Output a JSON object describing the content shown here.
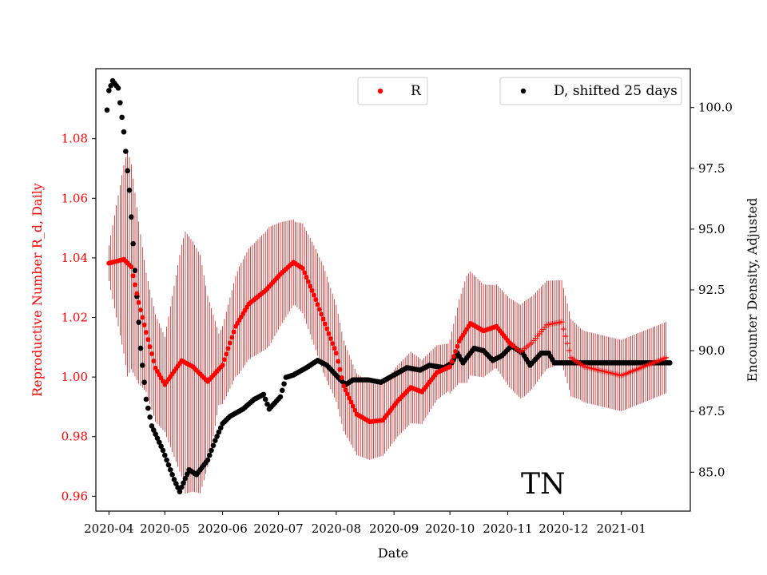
{
  "chart_data": {
    "type": "scatter",
    "xlabel": "Date",
    "ylabel_left": "Reproductive Number R_d, Daily",
    "ylabel_right": "Encounter Density, Adjusted",
    "annotation": "TN",
    "x_ticks": [
      "2020-04",
      "2020-05",
      "2020-06",
      "2020-07",
      "2020-08",
      "2020-09",
      "2020-10",
      "2020-11",
      "2020-12",
      "2021-01"
    ],
    "y_left_ticks": [
      "0.96",
      "0.98",
      "1.00",
      "1.02",
      "1.04",
      "1.06",
      "1.08"
    ],
    "y_right_ticks": [
      "85.0",
      "87.5",
      "90.0",
      "92.5",
      "95.0",
      "97.5",
      "100.0"
    ],
    "xlim": [
      "2020-03-25",
      "2021-02-07"
    ],
    "ylim_left": [
      0.955,
      1.1035
    ],
    "ylim_right": [
      83.4,
      101.6
    ],
    "colors": {
      "R": "#ff0000",
      "D": "#000000",
      "errorbar": "#c00000",
      "left_axis_text": "#ff0000"
    },
    "legend_R": {
      "label": "R",
      "placement": "top-center"
    },
    "legend_D": {
      "label": "D, shifted 25 days",
      "placement": "top-right"
    },
    "series_R_knots": [
      [
        "2020-04-01",
        1.0382
      ],
      [
        "2020-04-09",
        1.0395
      ],
      [
        "2020-04-13",
        1.037
      ],
      [
        "2020-04-17",
        1.025
      ],
      [
        "2020-04-21",
        1.015
      ],
      [
        "2020-04-26",
        1.003
      ],
      [
        "2020-05-01",
        0.9975
      ],
      [
        "2020-05-05",
        1.001
      ],
      [
        "2020-05-10",
        1.0055
      ],
      [
        "2020-05-16",
        1.0035
      ],
      [
        "2020-05-24",
        0.9985
      ],
      [
        "2020-06-01",
        1.004
      ],
      [
        "2020-06-08",
        1.017
      ],
      [
        "2020-06-15",
        1.0245
      ],
      [
        "2020-06-24",
        1.029
      ],
      [
        "2020-07-02",
        1.0345
      ],
      [
        "2020-07-09",
        1.0385
      ],
      [
        "2020-07-14",
        1.0365
      ],
      [
        "2020-07-21",
        1.026
      ],
      [
        "2020-08-01",
        1.008
      ],
      [
        "2020-08-05",
        0.997
      ],
      [
        "2020-08-12",
        0.9875
      ],
      [
        "2020-08-19",
        0.985
      ],
      [
        "2020-08-26",
        0.9855
      ],
      [
        "2020-09-03",
        0.992
      ],
      [
        "2020-09-10",
        0.9965
      ],
      [
        "2020-09-16",
        0.995
      ],
      [
        "2020-09-24",
        1.0015
      ],
      [
        "2020-10-01",
        1.0035
      ],
      [
        "2020-10-06",
        1.012
      ],
      [
        "2020-10-12",
        1.018
      ],
      [
        "2020-10-19",
        1.0155
      ],
      [
        "2020-10-26",
        1.017
      ],
      [
        "2020-11-02",
        1.0115
      ],
      [
        "2020-11-08",
        1.0085
      ],
      [
        "2020-11-14",
        1.0115
      ],
      [
        "2020-11-22",
        1.0175
      ],
      [
        "2020-11-30",
        1.0185
      ],
      [
        "2020-12-05",
        1.0065
      ],
      [
        "2020-12-12",
        1.0035
      ],
      [
        "2021-01-01",
        1.0005
      ],
      [
        "2021-01-25",
        1.0065
      ]
    ],
    "series_D_knots": [
      [
        "2020-03-31",
        99.9
      ],
      [
        "2020-04-01",
        100.7
      ],
      [
        "2020-04-03",
        101.1
      ],
      [
        "2020-04-06",
        100.8
      ],
      [
        "2020-04-09",
        99.0
      ],
      [
        "2020-04-12",
        96.6
      ],
      [
        "2020-04-15",
        93.3
      ],
      [
        "2020-04-18",
        90.1
      ],
      [
        "2020-04-21",
        88.0
      ],
      [
        "2020-04-24",
        86.9
      ],
      [
        "2020-04-30",
        85.9
      ],
      [
        "2020-05-06",
        84.7
      ],
      [
        "2020-05-09",
        84.2
      ],
      [
        "2020-05-14",
        85.1
      ],
      [
        "2020-05-18",
        84.9
      ],
      [
        "2020-05-24",
        85.5
      ],
      [
        "2020-05-28",
        86.3
      ],
      [
        "2020-06-01",
        87.0
      ],
      [
        "2020-06-05",
        87.3
      ],
      [
        "2020-06-12",
        87.6
      ],
      [
        "2020-06-18",
        88.0
      ],
      [
        "2020-06-23",
        88.2
      ],
      [
        "2020-06-26",
        87.6
      ],
      [
        "2020-07-02",
        88.1
      ],
      [
        "2020-07-05",
        88.9
      ],
      [
        "2020-07-09",
        89.0
      ],
      [
        "2020-07-16",
        89.3
      ],
      [
        "2020-07-22",
        89.6
      ],
      [
        "2020-07-27",
        89.4
      ],
      [
        "2020-08-02",
        88.9
      ],
      [
        "2020-08-06",
        88.6
      ],
      [
        "2020-08-10",
        88.8
      ],
      [
        "2020-08-18",
        88.8
      ],
      [
        "2020-08-25",
        88.7
      ],
      [
        "2020-09-01",
        89.0
      ],
      [
        "2020-09-08",
        89.3
      ],
      [
        "2020-09-15",
        89.2
      ],
      [
        "2020-09-20",
        89.4
      ],
      [
        "2020-09-28",
        89.3
      ],
      [
        "2020-10-02",
        89.5
      ],
      [
        "2020-10-05",
        89.9
      ],
      [
        "2020-10-08",
        89.5
      ],
      [
        "2020-10-14",
        90.1
      ],
      [
        "2020-10-19",
        90.0
      ],
      [
        "2020-10-24",
        89.6
      ],
      [
        "2020-10-29",
        89.8
      ],
      [
        "2020-11-03",
        90.2
      ],
      [
        "2020-11-09",
        89.9
      ],
      [
        "2020-11-13",
        89.4
      ],
      [
        "2020-11-19",
        89.9
      ],
      [
        "2020-11-23",
        89.9
      ],
      [
        "2020-11-26",
        89.5
      ],
      [
        "2021-01-27",
        89.5
      ]
    ],
    "errorbar_halfwidth_knots": [
      [
        "2020-04-01",
        0.006
      ],
      [
        "2020-04-11",
        0.038
      ],
      [
        "2020-04-21",
        0.02
      ],
      [
        "2020-05-01",
        0.016
      ],
      [
        "2020-05-12",
        0.044
      ],
      [
        "2020-05-20",
        0.04
      ],
      [
        "2020-05-30",
        0.012
      ],
      [
        "2020-06-10",
        0.018
      ],
      [
        "2020-06-26",
        0.02
      ],
      [
        "2020-07-10",
        0.014
      ],
      [
        "2020-07-25",
        0.018
      ],
      [
        "2020-08-10",
        0.014
      ],
      [
        "2020-08-25",
        0.012
      ],
      [
        "2020-09-10",
        0.012
      ],
      [
        "2020-09-30",
        0.008
      ],
      [
        "2020-10-10",
        0.018
      ],
      [
        "2020-10-25",
        0.014
      ],
      [
        "2020-11-10",
        0.016
      ],
      [
        "2020-11-30",
        0.014
      ],
      [
        "2020-12-10",
        0.012
      ],
      [
        "2021-01-25",
        0.012
      ]
    ]
  }
}
